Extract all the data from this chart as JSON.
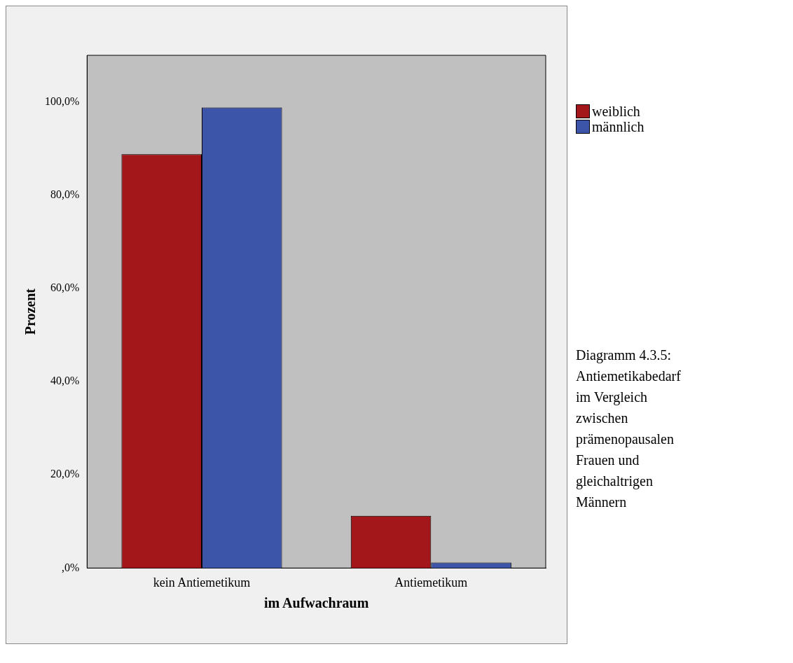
{
  "chart_data": {
    "type": "bar",
    "xlabel": "im Aufwachraum",
    "ylabel": "Prozent",
    "categories": [
      "kein Antiemetikum",
      "Antiemetikum"
    ],
    "series": [
      {
        "name": "weiblich",
        "color": "#a3161a",
        "values": [
          88.8,
          11.2
        ]
      },
      {
        "name": "männlich",
        "color": "#3d55a8",
        "values": [
          98.8,
          1.2
        ]
      }
    ],
    "ylim": [
      0,
      110
    ],
    "yticks": [
      {
        "value": 0,
        "label": ",0%"
      },
      {
        "value": 20,
        "label": "20,0%"
      },
      {
        "value": 40,
        "label": "40,0%"
      },
      {
        "value": 60,
        "label": "60,0%"
      },
      {
        "value": 80,
        "label": "80,0%"
      },
      {
        "value": 100,
        "label": "100,0%"
      }
    ],
    "grid": false,
    "legend": "top right",
    "annotations": [
      "Diagramm 4.3.5: Antiemetikabedarf im Vergleich zwischen prämenopausalen Frauen und gleichaltrigen Männern"
    ]
  }
}
